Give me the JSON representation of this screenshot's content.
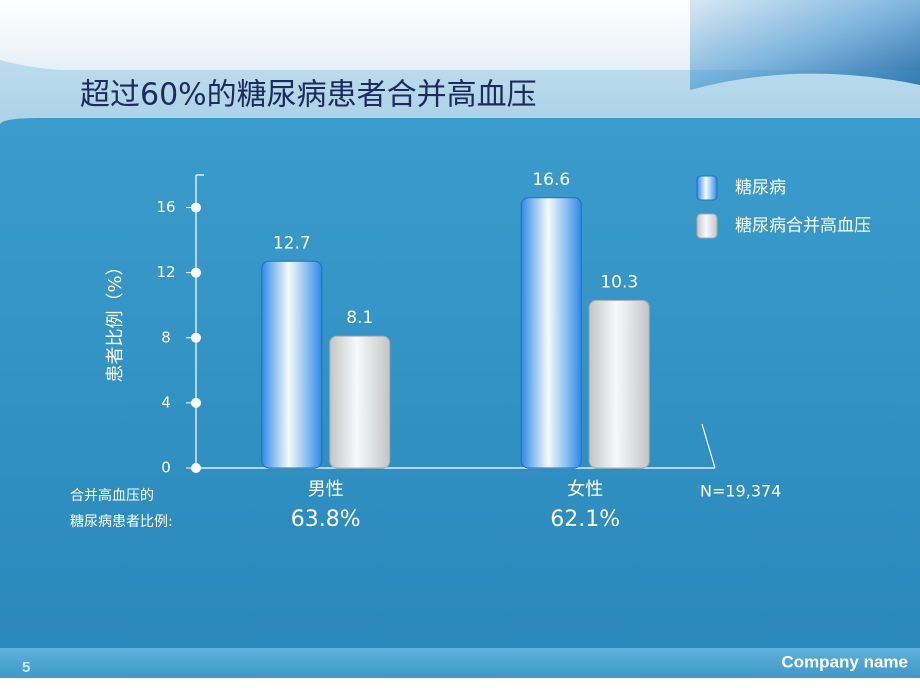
{
  "chart_data": {
    "type": "bar",
    "title": "超过60%的糖尿病患者合并高血压",
    "y_label": "患者比例（%）",
    "categories": [
      "男性",
      "女性"
    ],
    "series": [
      {
        "name": "糖尿病",
        "color": "#2f8ae6",
        "values": [
          12.7,
          16.6
        ]
      },
      {
        "name": "糖尿病合并高血压",
        "color": "#c4c4c4",
        "values": [
          8.1,
          10.3
        ]
      }
    ],
    "ylim": [
      0,
      18
    ],
    "yticks": [
      0,
      4,
      8,
      12,
      16
    ],
    "legend": "top-right",
    "share_label": [
      "合并高血压的",
      "糖尿病患者比例:"
    ],
    "share_texts": [
      "63.8%",
      "62.1%"
    ],
    "note": "N=19,374"
  },
  "slide": {
    "footer_text": "Company name",
    "page_number": "5"
  }
}
